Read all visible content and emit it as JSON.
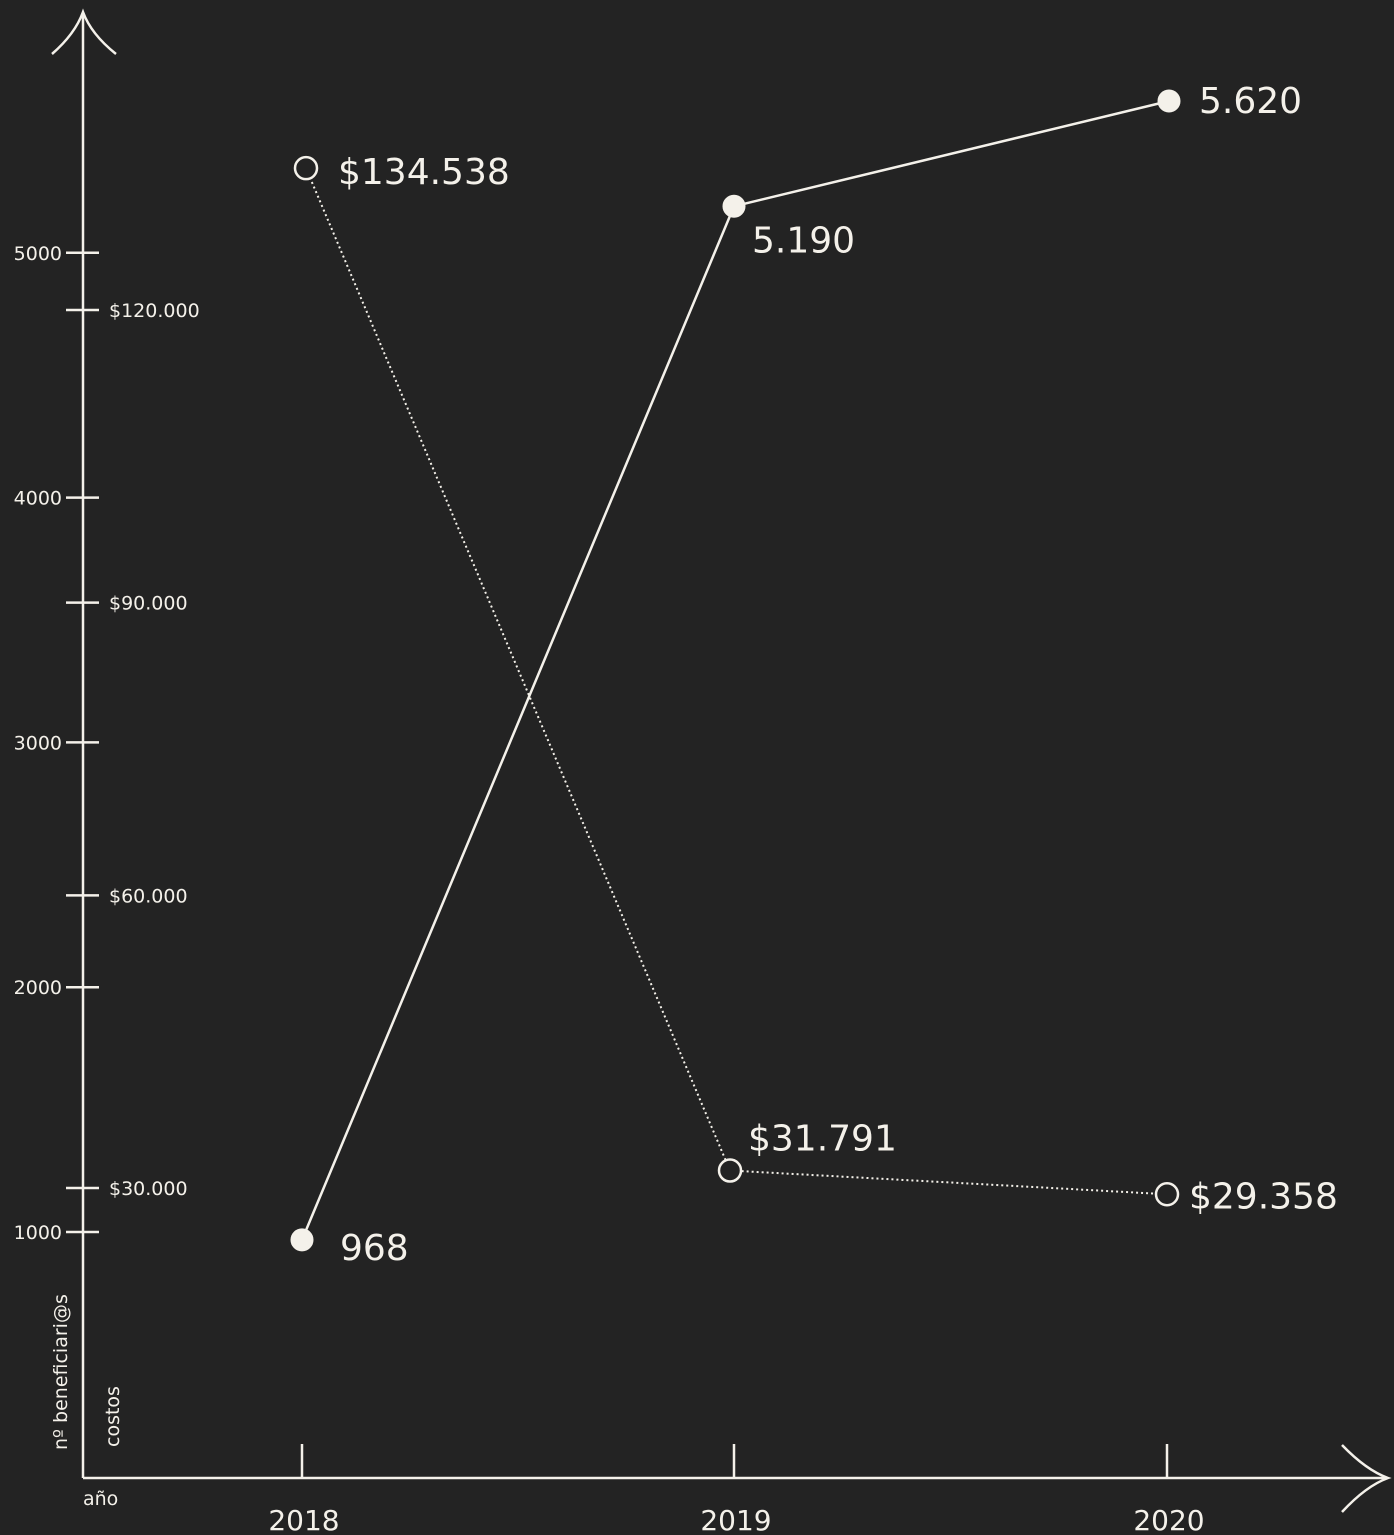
{
  "chart_data": {
    "type": "line",
    "categories": [
      "2018",
      "2019",
      "2020"
    ],
    "xlabel": "año",
    "ylabel_left": "nº beneficiari@s",
    "ylabel_right": "costos",
    "y_left_ticks": [
      "5000",
      "4000",
      "3000",
      "2000",
      "1000"
    ],
    "y_left_tick_values": [
      5000,
      4000,
      3000,
      2000,
      1000
    ],
    "y_right_ticks": [
      "$120.000",
      "$90.000",
      "$60.000",
      "$30.000"
    ],
    "y_right_tick_values": [
      120000,
      90000,
      60000,
      30000
    ],
    "series": [
      {
        "name": "nº beneficiari@s",
        "axis": "left",
        "values": [
          968,
          5190,
          5620
        ],
        "labels": [
          "968",
          "5.190",
          "5.620"
        ],
        "line_style": "solid",
        "marker": "filled"
      },
      {
        "name": "costos",
        "axis": "right",
        "values": [
          134538,
          31791,
          29358
        ],
        "labels": [
          "$134.538",
          "$31.791",
          "$29.358"
        ],
        "line_style": "dotted",
        "marker": "hollow"
      }
    ],
    "colors": {
      "background": "#232323",
      "foreground": "#f4f1ea"
    }
  }
}
